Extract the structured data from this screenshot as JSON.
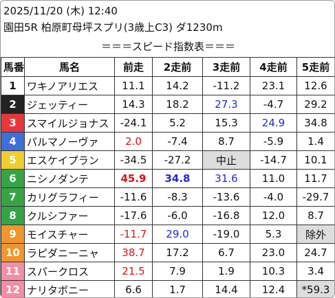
{
  "header": {
    "datetime": "2025/11/20 (木) 12:40",
    "race": "園田5R 柏原町母坪スプリ(3歳上C3) ダ1230m",
    "title": "＝＝＝スピード指数表＝＝＝"
  },
  "table": {
    "columns": [
      "馬番",
      "馬名",
      "前走",
      "2走前",
      "3走前",
      "4走前",
      "5走前"
    ],
    "rows": [
      [
        "1",
        "ワキノアリエス",
        "11.1",
        "14.2",
        "-11.2",
        "23.1",
        "12.6"
      ],
      [
        "2",
        "ジェッティー",
        "14.3",
        "18.2",
        "27.3",
        "-4.7",
        "29.2"
      ],
      [
        "3",
        "スマイルジョナス",
        "-24.1",
        "5.2",
        "15.3",
        "24.9",
        "34.8"
      ],
      [
        "4",
        "パルマノーヴァ",
        "2.0",
        "-7.4",
        "8.7",
        "-5.9",
        "1.4"
      ],
      [
        "5",
        "エスケイプラン",
        "-34.5",
        "-27.2",
        "中止",
        "-14.7",
        "10.1"
      ],
      [
        "6",
        "ニシノダンテ",
        "45.9",
        "34.8",
        "31.6",
        "11.0",
        "11.7"
      ],
      [
        "7",
        "カリグラフィー",
        "-11.6",
        "-8.3",
        "-13.6",
        "-4.0",
        "-29.7"
      ],
      [
        "8",
        "クルシファー",
        "-17.6",
        "-6.0",
        "-16.8",
        "12.0",
        "8.7"
      ],
      [
        "9",
        "モイスチャー",
        "-11.7",
        "29.0",
        "-19.0",
        "5.3",
        "除外"
      ],
      [
        "10",
        "ラピダニーニャ",
        "38.7",
        "17.2",
        "6.7",
        "23.0",
        "24.7"
      ],
      [
        "11",
        "スパークロス",
        "21.5",
        "7.9",
        "1.9",
        "10.3",
        "3.4"
      ],
      [
        "12",
        "ナリタボニー",
        "6.6",
        "1.7",
        "14.4",
        "12.4",
        "*59.3"
      ]
    ]
  }
}
